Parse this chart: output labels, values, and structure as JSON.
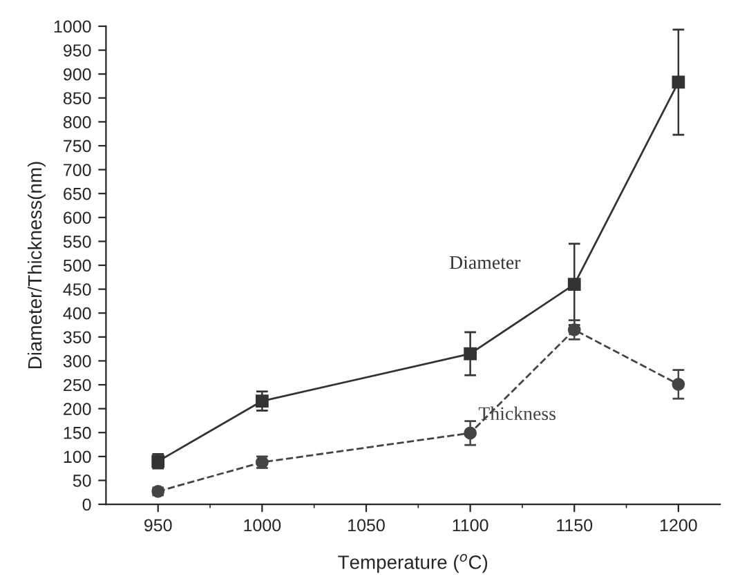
{
  "chart_data": {
    "type": "line",
    "xlabel": "Temperature ($^{o}$C)",
    "ylabel": "Diameter/Thickness(nm)",
    "x": [
      950,
      1000,
      1100,
      1150,
      1200
    ],
    "series": [
      {
        "name": "Diameter",
        "color": "#333333",
        "marker": "square",
        "line_style": "solid",
        "values": [
          90,
          216,
          315,
          460,
          883
        ],
        "errors": [
          15,
          20,
          45,
          85,
          110
        ]
      },
      {
        "name": "Thickness",
        "color": "#444444",
        "marker": "circle",
        "line_style": "dashed",
        "values": [
          27,
          88,
          149,
          365,
          251
        ],
        "errors": [
          8,
          12,
          25,
          20,
          30
        ]
      }
    ],
    "xlim": [
      925,
      1220
    ],
    "ylim": [
      0,
      1000
    ],
    "xticks": [
      950,
      {
        "value": 975,
        "label": null
      },
      1000,
      {
        "value": 1025,
        "label": null
      },
      1050,
      {
        "value": 1075,
        "label": null
      },
      1100,
      {
        "value": 1125,
        "label": null
      },
      1150,
      {
        "value": 1175,
        "label": null
      },
      1200
    ],
    "yticks": [
      0,
      50,
      100,
      150,
      200,
      250,
      300,
      350,
      400,
      450,
      500,
      550,
      600,
      650,
      700,
      750,
      800,
      850,
      900,
      950,
      1000
    ],
    "grid": false,
    "legend": false
  }
}
